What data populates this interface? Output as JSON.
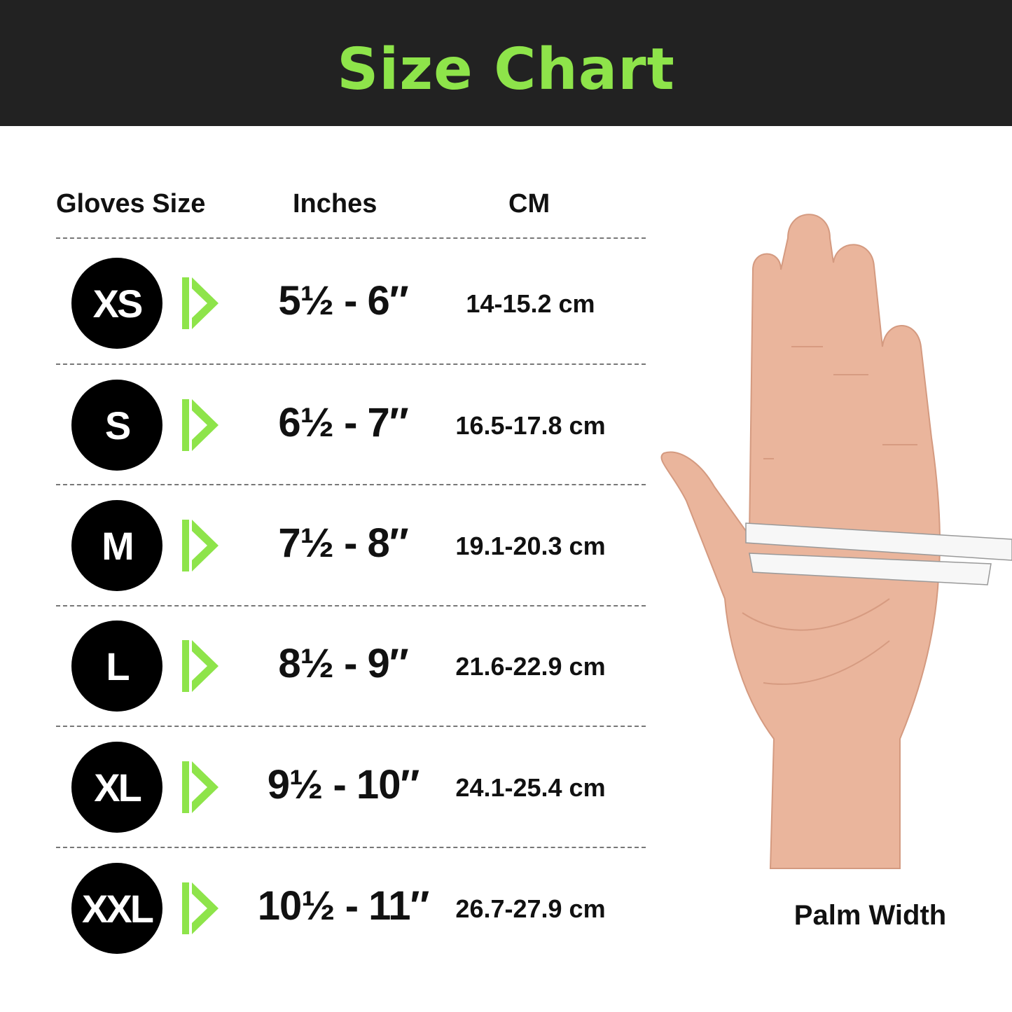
{
  "title": "Size Chart",
  "columns": {
    "size": "Gloves Size",
    "inches": "Inches",
    "cm": "CM"
  },
  "rows": [
    {
      "size": "XS",
      "inches": "5½ - 6″",
      "cm": "14-15.2 cm"
    },
    {
      "size": "S",
      "inches": "6½ - 7″",
      "cm": "16.5-17.8 cm"
    },
    {
      "size": "M",
      "inches": "7½ - 8″",
      "cm": "19.1-20.3 cm"
    },
    {
      "size": "L",
      "inches": "8½ - 9″",
      "cm": "21.6-22.9 cm"
    },
    {
      "size": "XL",
      "inches": "9½ - 10″",
      "cm": "24.1-25.4 cm"
    },
    {
      "size": "XXL",
      "inches": "10½ - 11″",
      "cm": "26.7-27.9 cm"
    }
  ],
  "image_caption": "Palm Width",
  "colors": {
    "header_bg": "#222222",
    "accent": "#8ee44a",
    "badge": "#000000"
  },
  "icons": {
    "row_marker": "double-play-arrow-icon"
  }
}
